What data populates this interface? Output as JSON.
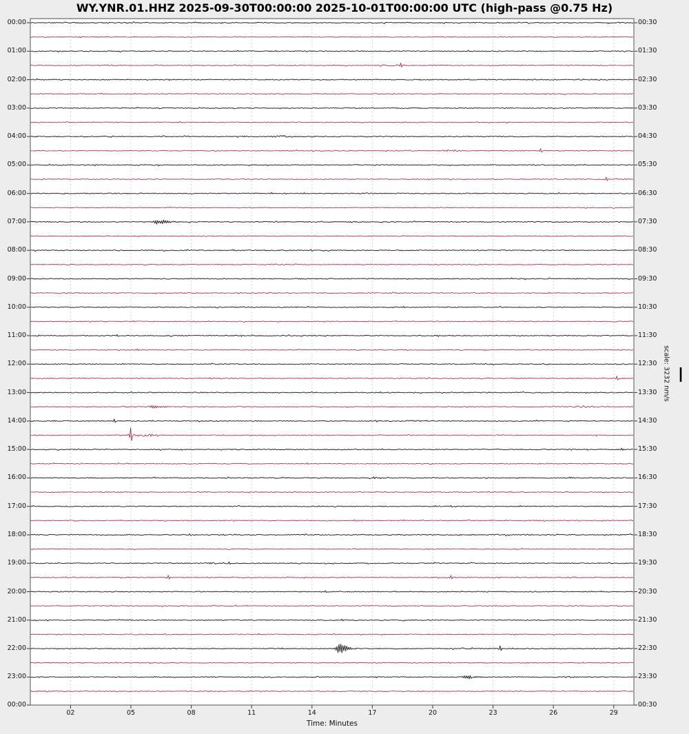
{
  "title": "WY.YNR.01.HHZ 2025-09-30T00:00:00 2025-10-01T00:00:00 UTC (high-pass @0.75 Hz)",
  "chart_data": {
    "type": "line",
    "subtype": "helicorder-dayplot",
    "station": "WY.YNR.01.HHZ",
    "start_time": "2025-09-30T00:00:00",
    "end_time": "2025-10-01T00:00:00",
    "timezone": "UTC",
    "filter": "high-pass @0.75 Hz",
    "xlabel": "Time: Minutes",
    "x_range_minutes": [
      0,
      30
    ],
    "x_tick_minutes": [
      2,
      5,
      8,
      11,
      14,
      17,
      20,
      23,
      26,
      29
    ],
    "x_tick_labels": [
      "02",
      "05",
      "08",
      "11",
      "14",
      "17",
      "20",
      "23",
      "26",
      "29"
    ],
    "minutes_per_row": 30,
    "row_count": 48,
    "trace_colors": {
      "even_rows": "#1f1f1f",
      "odd_rows": "#a82846"
    },
    "grid_on": true,
    "left_labels": [
      "00:00",
      "01:00",
      "02:00",
      "03:00",
      "04:00",
      "05:00",
      "06:00",
      "07:00",
      "08:00",
      "09:00",
      "10:00",
      "11:00",
      "12:00",
      "13:00",
      "14:00",
      "15:00",
      "16:00",
      "17:00",
      "18:00",
      "19:00",
      "20:00",
      "21:00",
      "22:00",
      "23:00"
    ],
    "bottom_left_label": "00:00",
    "right_labels": [
      "00:30",
      "01:30",
      "02:30",
      "03:30",
      "04:30",
      "05:30",
      "06:30",
      "07:30",
      "08:30",
      "09:30",
      "10:30",
      "11:30",
      "12:30",
      "13:30",
      "14:30",
      "15:30",
      "16:30",
      "17:30",
      "18:30",
      "19:30",
      "20:30",
      "21:30",
      "22:30",
      "23:30"
    ],
    "bottom_right_label": "00:30",
    "scale_label": "scale: 3232 nm/s",
    "scale_value_nm_s": 3232,
    "events": [
      {
        "row": 3,
        "min": 3.97,
        "kind": "fuzz",
        "amp": 0.9,
        "w": 0.4
      },
      {
        "row": 3,
        "min": 17.9,
        "kind": "fuzz",
        "amp": 1.2,
        "w": 0.5
      },
      {
        "row": 3,
        "min": 18.42,
        "kind": "spike",
        "amp": 3.5
      },
      {
        "row": 8,
        "min": 12.36,
        "kind": "fuzz",
        "amp": 1.5,
        "w": 0.25
      },
      {
        "row": 9,
        "min": 20.99,
        "kind": "fuzz",
        "amp": 1.7,
        "w": 0.4
      },
      {
        "row": 9,
        "min": 25.38,
        "kind": "spike",
        "amp": 3.0
      },
      {
        "row": 11,
        "min": 28.63,
        "kind": "spike",
        "amp": 3.0
      },
      {
        "row": 14,
        "min": 6.3,
        "kind": "burst",
        "amp": 3.0,
        "w": 0.45
      },
      {
        "row": 22,
        "min": 4.32,
        "kind": "spike",
        "amp": 1.6
      },
      {
        "row": 23,
        "min": 5.34,
        "kind": "spike",
        "amp": 1.6
      },
      {
        "row": 25,
        "min": 8.94,
        "kind": "spike",
        "amp": 1.2
      },
      {
        "row": 25,
        "min": 29.14,
        "kind": "spike",
        "amp": 3.2
      },
      {
        "row": 27,
        "min": 6.1,
        "kind": "burst",
        "amp": 2.6,
        "w": 0.35
      },
      {
        "row": 27,
        "min": 27.43,
        "kind": "fuzz",
        "amp": 1.5,
        "w": 0.5
      },
      {
        "row": 28,
        "min": 4.18,
        "kind": "spike",
        "amp": 2.8
      },
      {
        "row": 28,
        "min": 18.7,
        "kind": "fuzz",
        "amp": 0.8,
        "w": 0.6
      },
      {
        "row": 29,
        "min": 5.0,
        "kind": "spike",
        "amp": 11.0
      },
      {
        "row": 29,
        "min": 5.7,
        "kind": "fuzz",
        "amp": 1.6,
        "w": 0.8
      },
      {
        "row": 30,
        "min": 29.38,
        "kind": "spike",
        "amp": 1.8
      },
      {
        "row": 31,
        "min": 13.77,
        "kind": "spike",
        "amp": 1.2
      },
      {
        "row": 32,
        "min": 17.09,
        "kind": "fuzz",
        "amp": 1.1,
        "w": 0.5
      },
      {
        "row": 34,
        "min": 20.92,
        "kind": "spike",
        "amp": 1.5
      },
      {
        "row": 35,
        "min": 16.13,
        "kind": "spike",
        "amp": 1.3
      },
      {
        "row": 36,
        "min": 7.91,
        "kind": "spike",
        "amp": 1.5
      },
      {
        "row": 38,
        "min": 9.38,
        "kind": "fuzz",
        "amp": 1.1,
        "w": 0.55
      },
      {
        "row": 38,
        "min": 9.86,
        "kind": "spike",
        "amp": 2.0
      },
      {
        "row": 39,
        "min": 6.88,
        "kind": "spike",
        "amp": 3.2
      },
      {
        "row": 39,
        "min": 20.92,
        "kind": "spike",
        "amp": 3.0
      },
      {
        "row": 40,
        "min": 14.66,
        "kind": "spike",
        "amp": 1.6
      },
      {
        "row": 42,
        "min": 4.14,
        "kind": "fuzz",
        "amp": 0.8,
        "w": 0.4
      },
      {
        "row": 42,
        "min": 15.51,
        "kind": "spike",
        "amp": 1.5
      },
      {
        "row": 43,
        "min": 6.71,
        "kind": "fuzz",
        "amp": 1.0,
        "w": 0.3
      },
      {
        "row": 44,
        "min": 15.31,
        "kind": "burst",
        "amp": 7.0,
        "w": 0.28
      },
      {
        "row": 44,
        "min": 23.36,
        "kind": "spike",
        "amp": 4.0
      },
      {
        "row": 46,
        "min": 21.61,
        "kind": "burst",
        "amp": 2.4,
        "w": 0.3
      },
      {
        "row": 46,
        "min": 26.64,
        "kind": "fuzz",
        "amp": 1.3,
        "w": 0.3
      }
    ]
  }
}
